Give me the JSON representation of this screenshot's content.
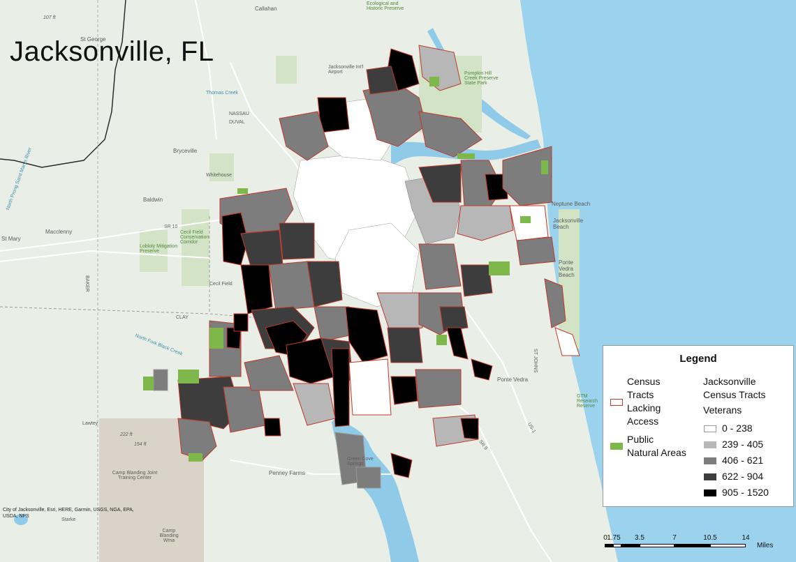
{
  "title": "Jacksonville, FL",
  "colors": {
    "land": "#e9efe6",
    "water": "#8fcbe8",
    "ocean": "#9bd3ee",
    "park": "#7fb84a",
    "tract_border_lacking": "#c0392b",
    "class_0": "#ffffff",
    "class_1": "#b7b7b7",
    "class_2": "#7d7d7d",
    "class_3": "#3d3d3d",
    "class_4": "#000000",
    "county_line": "#2a2a2a"
  },
  "place_labels": [
    "Callahan",
    "St George",
    "Jacksonville Int'l Airport",
    "Thomas Creek",
    "NASSAU",
    "DUVAL",
    "Bryceville",
    "Whitehouse",
    "Baldwin",
    "Macclenny",
    "St Mary",
    "Cecil Field",
    "Lobloly Mitigation Preserve",
    "North Prong Saint Marys River",
    "BAKER",
    "CLAY",
    "North Fork Black Creek",
    "Lawtey",
    "Camp Blanding Joint Training Center",
    "Starke",
    "Camp Blanding Wma",
    "Penney Farms",
    "Green Cove Springs",
    "Neptune Beach",
    "Jacksonville Beach",
    "Ponte Vedra Beach",
    "Ponte Vedra",
    "ST JOHNS",
    "US-1",
    "SR 9",
    "SR 10",
    "107 ft",
    "154 ft",
    "222 ft",
    "Pumpkin Hill Creek Preserve State Park",
    "Ecological and Historic Preserve",
    "Cecil Field Conservation Corridor",
    "GTM Research Reserve"
  ],
  "legend": {
    "title": "Legend",
    "lacking_label": "Census Tracts Lacking Access",
    "lacking_lines": [
      "Census",
      "Tracts",
      "Lacking",
      "Access"
    ],
    "natural_lines": [
      "Public",
      "Natural Areas"
    ],
    "tracts_lines": [
      "Jacksonville",
      "Census Tracts"
    ],
    "field": "Veterans",
    "classes": [
      "0 - 238",
      "239 - 405",
      "406 - 621",
      "622 - 904",
      "905 - 1520"
    ]
  },
  "credits": "City of Jacksonville, Esri, HERE, Garmin, USGS, NGA, EPA, USDA, NPS",
  "scale": {
    "ticks": [
      "0",
      "1.75",
      "3.5",
      "7",
      "10.5",
      "14"
    ],
    "unit": "Miles"
  }
}
